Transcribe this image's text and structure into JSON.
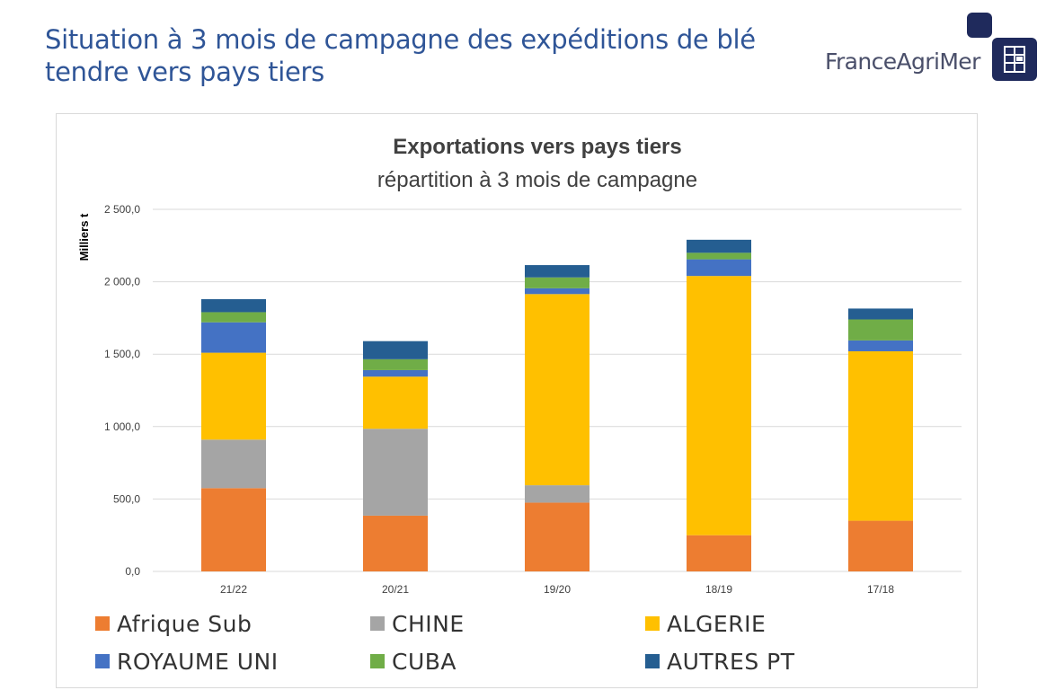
{
  "slide": {
    "title": "Situation à 3 mois de campagne des expéditions de blé tendre vers pays tiers",
    "logo_text": "FranceAgriMer"
  },
  "icons": {
    "logo": "franceagrimer-logo-icon"
  },
  "chart_data": {
    "type": "bar",
    "stacked": true,
    "title": "Exportations vers pays tiers",
    "subtitle": "répartition à 3 mois de campagne",
    "xlabel": "",
    "ylabel": "Milliers t",
    "ylim": [
      0,
      2500
    ],
    "yticks": [
      0,
      500,
      1000,
      1500,
      2000,
      2500
    ],
    "ytick_labels": [
      "0,0",
      "500,0",
      "1 000,0",
      "1 500,0",
      "2 000,0",
      "2 500,0"
    ],
    "grid": true,
    "legend_position": "bottom",
    "categories": [
      "21/22",
      "20/21",
      "19/20",
      "18/19",
      "17/18"
    ],
    "series": [
      {
        "name": "Afrique Sub",
        "color": "#ed7d31",
        "values": [
          575,
          385,
          475,
          250,
          350
        ]
      },
      {
        "name": "CHINE",
        "color": "#a5a5a5",
        "values": [
          335,
          600,
          120,
          0,
          0
        ]
      },
      {
        "name": "ALGERIE",
        "color": "#ffc000",
        "values": [
          600,
          360,
          1320,
          1790,
          1170
        ]
      },
      {
        "name": "ROYAUME UNI",
        "color": "#4472c4",
        "values": [
          210,
          45,
          40,
          115,
          75
        ]
      },
      {
        "name": "CUBA",
        "color": "#70ad47",
        "values": [
          70,
          75,
          75,
          45,
          145
        ]
      },
      {
        "name": "AUTRES PT",
        "color": "#255e91",
        "values": [
          90,
          125,
          85,
          90,
          75
        ]
      }
    ]
  }
}
